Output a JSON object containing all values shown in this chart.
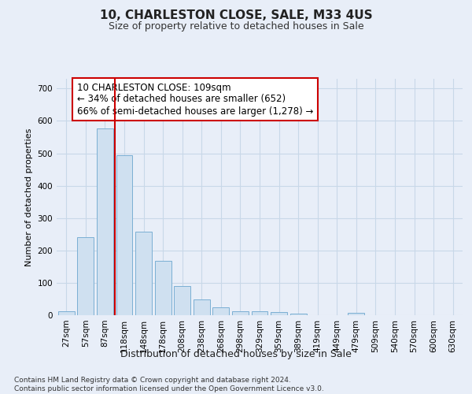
{
  "title": "10, CHARLESTON CLOSE, SALE, M33 4US",
  "subtitle": "Size of property relative to detached houses in Sale",
  "xlabel": "Distribution of detached houses by size in Sale",
  "ylabel": "Number of detached properties",
  "bar_labels": [
    "27sqm",
    "57sqm",
    "87sqm",
    "118sqm",
    "148sqm",
    "178sqm",
    "208sqm",
    "238sqm",
    "268sqm",
    "298sqm",
    "329sqm",
    "359sqm",
    "389sqm",
    "419sqm",
    "449sqm",
    "479sqm",
    "509sqm",
    "540sqm",
    "570sqm",
    "600sqm",
    "630sqm"
  ],
  "bar_values": [
    13,
    240,
    577,
    493,
    258,
    168,
    89,
    49,
    25,
    13,
    12,
    10,
    6,
    0,
    0,
    7,
    0,
    0,
    0,
    0,
    0
  ],
  "bar_color": "#cfe0f0",
  "bar_edge_color": "#7bafd4",
  "grid_color": "#c8d8e8",
  "background_color": "#e8eef8",
  "vline_pos": 2.5,
  "vline_color": "#cc0000",
  "annotation_text": "10 CHARLESTON CLOSE: 109sqm\n← 34% of detached houses are smaller (652)\n66% of semi-detached houses are larger (1,278) →",
  "annotation_box_color": "#ffffff",
  "annotation_box_edge": "#cc0000",
  "footer_text": "Contains HM Land Registry data © Crown copyright and database right 2024.\nContains public sector information licensed under the Open Government Licence v3.0.",
  "ylim": [
    0,
    730
  ],
  "yticks": [
    0,
    100,
    200,
    300,
    400,
    500,
    600,
    700
  ],
  "title_fontsize": 11,
  "subtitle_fontsize": 9,
  "ylabel_fontsize": 8,
  "xlabel_fontsize": 9,
  "tick_fontsize": 7.5,
  "annotation_fontsize": 8.5,
  "footer_fontsize": 6.5
}
